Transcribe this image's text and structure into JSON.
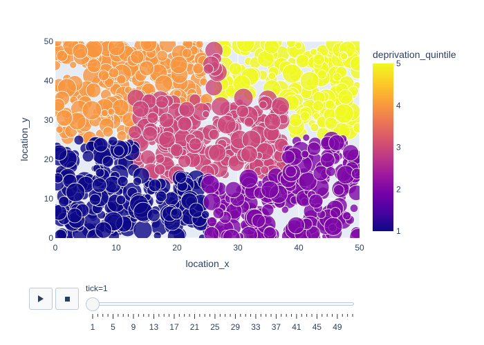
{
  "chart_data": {
    "type": "scatter",
    "xlabel": "location_x",
    "ylabel": "location_y",
    "xlim": [
      0,
      50
    ],
    "ylim": [
      0,
      50
    ],
    "x_ticks": [
      0,
      10,
      20,
      30,
      40,
      50
    ],
    "y_ticks": [
      0,
      10,
      20,
      30,
      40,
      50
    ],
    "grid": true,
    "color_variable": "deprivation_quintile",
    "colorbar": {
      "title": "deprivation_quintile",
      "min": 1,
      "max": 5,
      "ticks": [
        1,
        2,
        3,
        4,
        5
      ]
    },
    "marker_opacity": 0.8,
    "regions": [
      {
        "quintile": 4,
        "x_range": [
          0,
          25
        ],
        "y_range": [
          34,
          50
        ]
      },
      {
        "quintile": 4,
        "x_range": [
          0,
          13
        ],
        "y_range": [
          25,
          34
        ]
      },
      {
        "quintile": 5,
        "x_range": [
          27,
          50
        ],
        "y_range": [
          36,
          50
        ]
      },
      {
        "quintile": 5,
        "x_range": [
          38,
          50
        ],
        "y_range": [
          26,
          36
        ]
      },
      {
        "quintile": 3,
        "x_range": [
          13,
          38
        ],
        "y_range": [
          16,
          36
        ]
      },
      {
        "quintile": 3,
        "x_range": [
          25,
          27
        ],
        "y_range": [
          36,
          48
        ]
      },
      {
        "quintile": 1,
        "x_range": [
          0,
          13
        ],
        "y_range": [
          0,
          25
        ]
      },
      {
        "quintile": 1,
        "x_range": [
          13,
          25
        ],
        "y_range": [
          0,
          16
        ]
      },
      {
        "quintile": 2,
        "x_range": [
          25,
          50
        ],
        "y_range": [
          0,
          16
        ]
      },
      {
        "quintile": 2,
        "x_range": [
          38,
          50
        ],
        "y_range": [
          16,
          26
        ]
      }
    ],
    "points": []
  },
  "controls": {
    "play_icon": "play-icon",
    "stop_icon": "stop-icon",
    "slider_label": "tick=1",
    "slider_steps": [
      1,
      5,
      9,
      13,
      17,
      21,
      25,
      29,
      33,
      37,
      41,
      45,
      49
    ],
    "slider_min": 1,
    "slider_max": 52,
    "slider_value": 1
  },
  "colors": {
    "plasma": [
      "#0d0887",
      "#46039f",
      "#7201a8",
      "#9c179e",
      "#bd3786",
      "#d8576b",
      "#ed7953",
      "#fb9f3a",
      "#fdca26",
      "#f0f921"
    ],
    "plot_bg": "#e5ecf6",
    "grid": "#ffffff",
    "text": "#2a3f5f"
  }
}
